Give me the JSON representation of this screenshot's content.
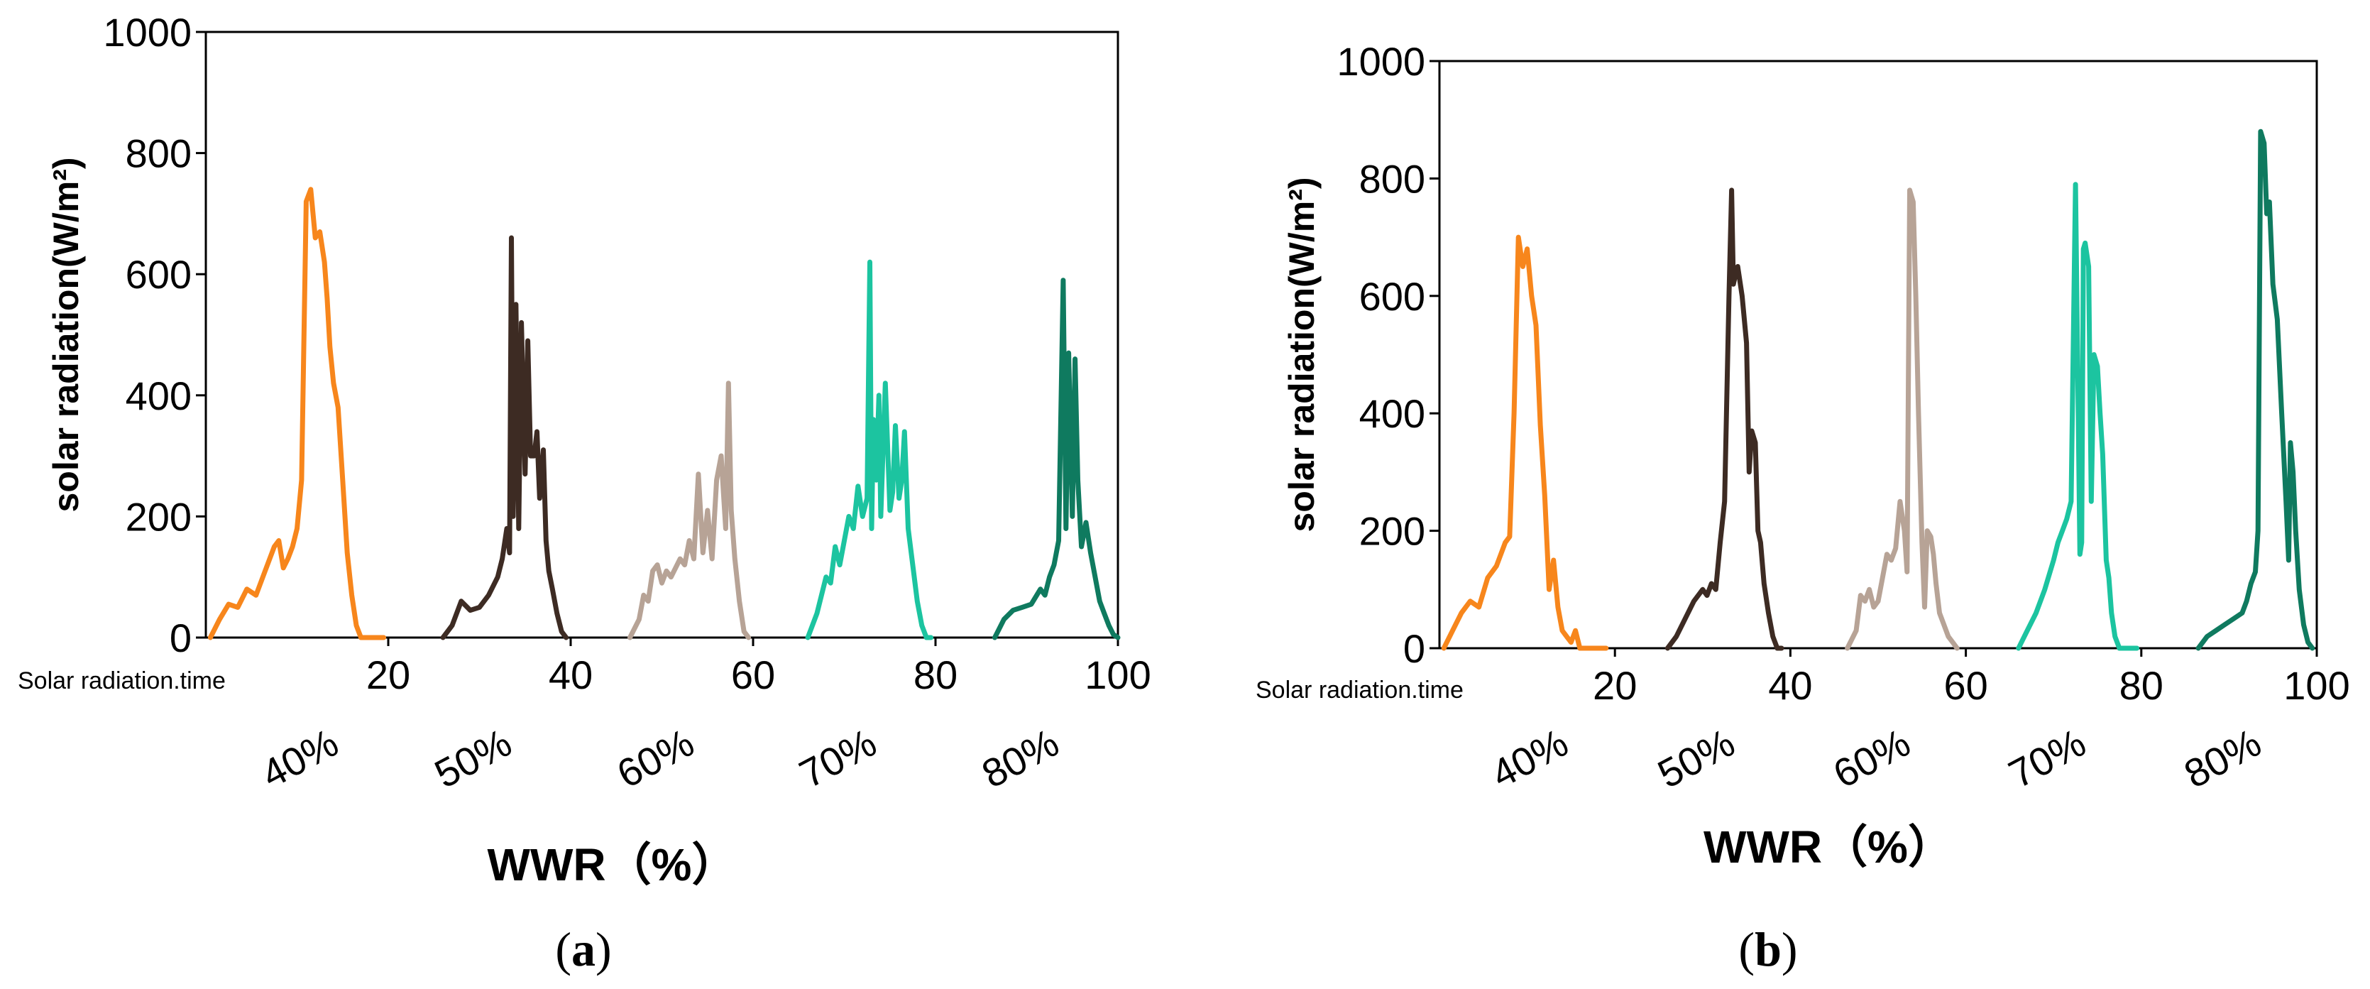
{
  "chart_data": [
    {
      "type": "line",
      "panel_label": "a",
      "ylabel": "solar radiation(W/m²)",
      "xlabel": "WWR（%）",
      "xlim": [
        0,
        100
      ],
      "ylim": [
        0,
        1000
      ],
      "xticks": [
        "20",
        "40",
        "60",
        "80",
        "100"
      ],
      "xtick_values": [
        20,
        40,
        60,
        80,
        100
      ],
      "yticks": [
        "0",
        "200",
        "400",
        "600",
        "800",
        "1000"
      ],
      "ytick_values": [
        0,
        200,
        400,
        600,
        800,
        1000
      ],
      "corner_note": "Solar radiation.time",
      "series": [
        {
          "name": "40%",
          "color": "#F7861C",
          "x": [
            0.5,
            1.5,
            2.5,
            3.5,
            4.5,
            5.5,
            6.5,
            7.5,
            8.0,
            8.5,
            9.0,
            9.5,
            10.0,
            10.5,
            11.0,
            11.5,
            12.0,
            12.5,
            13.0,
            13.3,
            13.6,
            14.0,
            14.5,
            15.0,
            15.5,
            16.0,
            16.5,
            17.0,
            17.5,
            18.0,
            18.5,
            19.0,
            19.5
          ],
          "y": [
            0,
            30,
            55,
            50,
            80,
            70,
            110,
            150,
            160,
            115,
            130,
            150,
            180,
            260,
            720,
            740,
            660,
            670,
            620,
            560,
            480,
            420,
            380,
            260,
            140,
            70,
            20,
            0,
            0,
            0,
            0,
            0,
            0
          ]
        },
        {
          "name": "50%",
          "color": "#3D2B23",
          "x": [
            26.0,
            27.0,
            28.0,
            29.0,
            30.0,
            31.0,
            32.0,
            32.5,
            33.0,
            33.3,
            33.5,
            33.7,
            34.0,
            34.3,
            34.6,
            35.0,
            35.3,
            35.6,
            36.0,
            36.3,
            36.6,
            37.0,
            37.3,
            37.6,
            38.0,
            38.5,
            39.0,
            39.5
          ],
          "y": [
            0,
            20,
            60,
            45,
            50,
            70,
            100,
            130,
            180,
            140,
            660,
            200,
            550,
            180,
            520,
            270,
            490,
            300,
            300,
            340,
            230,
            310,
            160,
            110,
            80,
            40,
            10,
            0
          ]
        },
        {
          "name": "60%",
          "color": "#B7A396",
          "x": [
            46.5,
            47.5,
            48.0,
            48.5,
            49.0,
            49.5,
            50.0,
            50.5,
            51.0,
            52.0,
            52.5,
            53.0,
            53.5,
            54.0,
            54.5,
            55.0,
            55.5,
            56.0,
            56.5,
            57.0,
            57.3,
            57.6,
            58.0,
            58.5,
            59.0,
            59.5
          ],
          "y": [
            0,
            30,
            70,
            60,
            110,
            120,
            90,
            110,
            100,
            130,
            120,
            160,
            130,
            270,
            140,
            210,
            130,
            260,
            300,
            180,
            420,
            210,
            130,
            60,
            10,
            0
          ]
        },
        {
          "name": "70%",
          "color": "#1CC4A0",
          "x": [
            66.0,
            67.0,
            68.0,
            68.5,
            69.0,
            69.5,
            70.0,
            70.5,
            71.0,
            71.5,
            72.0,
            72.5,
            72.8,
            73.0,
            73.2,
            73.5,
            73.8,
            74.0,
            74.5,
            75.0,
            75.3,
            75.6,
            76.0,
            76.3,
            76.6,
            77.0,
            77.5,
            78.0,
            78.5,
            79.0,
            79.5
          ],
          "y": [
            0,
            40,
            100,
            90,
            150,
            120,
            160,
            200,
            180,
            250,
            200,
            230,
            620,
            180,
            360,
            260,
            400,
            200,
            420,
            210,
            240,
            350,
            230,
            260,
            340,
            180,
            120,
            60,
            20,
            0,
            0
          ]
        },
        {
          "name": "80%",
          "color": "#0F7A5F",
          "x": [
            86.5,
            87.5,
            88.5,
            89.5,
            90.5,
            91.5,
            92.0,
            92.5,
            93.0,
            93.5,
            94.0,
            94.3,
            94.6,
            95.0,
            95.3,
            95.6,
            96.0,
            96.5,
            97.0,
            97.5,
            98.0,
            98.5,
            99.0,
            99.5,
            100.0
          ],
          "y": [
            0,
            30,
            45,
            50,
            55,
            80,
            70,
            100,
            120,
            160,
            590,
            180,
            470,
            200,
            460,
            260,
            150,
            190,
            140,
            100,
            60,
            40,
            20,
            5,
            0
          ]
        }
      ]
    },
    {
      "type": "line",
      "panel_label": "b",
      "ylabel": "solar radiation(W/m²)",
      "xlabel": "WWR（%）",
      "xlim": [
        0,
        100
      ],
      "ylim": [
        0,
        1000
      ],
      "xticks": [
        "20",
        "40",
        "60",
        "80",
        "100"
      ],
      "xtick_values": [
        20,
        40,
        60,
        80,
        100
      ],
      "yticks": [
        "0",
        "200",
        "400",
        "600",
        "800",
        "1000"
      ],
      "ytick_values": [
        0,
        200,
        400,
        600,
        800,
        1000
      ],
      "corner_note": "Solar radiation.time",
      "series": [
        {
          "name": "40%",
          "color": "#F7861C",
          "x": [
            0.5,
            1.5,
            2.5,
            3.5,
            4.5,
            5.5,
            6.5,
            7.5,
            8.0,
            8.5,
            9.0,
            9.5,
            10.0,
            10.5,
            11.0,
            11.5,
            12.0,
            12.5,
            13.0,
            13.5,
            14.0,
            14.5,
            15.0,
            15.5,
            16.0,
            16.5,
            17.0,
            17.5,
            18.0,
            18.5,
            19.0
          ],
          "y": [
            0,
            30,
            60,
            80,
            70,
            120,
            140,
            180,
            190,
            400,
            700,
            650,
            680,
            600,
            550,
            380,
            260,
            100,
            150,
            70,
            30,
            20,
            10,
            30,
            0,
            0,
            0,
            0,
            0,
            0,
            0
          ]
        },
        {
          "name": "50%",
          "color": "#3D2B23",
          "x": [
            26.0,
            27.0,
            28.0,
            29.0,
            30.0,
            30.5,
            31.0,
            31.5,
            32.0,
            32.5,
            33.0,
            33.3,
            33.5,
            33.8,
            34.0,
            34.5,
            35.0,
            35.3,
            35.6,
            36.0,
            36.3,
            36.6,
            37.0,
            37.5,
            38.0,
            38.5,
            39.0
          ],
          "y": [
            0,
            20,
            50,
            80,
            100,
            90,
            110,
            100,
            180,
            250,
            600,
            780,
            620,
            640,
            650,
            600,
            520,
            300,
            370,
            350,
            200,
            180,
            110,
            60,
            20,
            0,
            0
          ]
        },
        {
          "name": "60%",
          "color": "#B7A396",
          "x": [
            46.5,
            47.5,
            48.0,
            48.5,
            49.0,
            49.5,
            50.0,
            50.5,
            51.0,
            51.5,
            52.0,
            52.5,
            53.0,
            53.3,
            53.6,
            54.0,
            54.3,
            54.6,
            55.0,
            55.3,
            55.6,
            56.0,
            56.3,
            56.6,
            57.0,
            57.5,
            58.0,
            58.5,
            59.0
          ],
          "y": [
            0,
            30,
            90,
            80,
            100,
            70,
            80,
            120,
            160,
            150,
            170,
            250,
            200,
            130,
            780,
            760,
            600,
            400,
            180,
            70,
            200,
            190,
            160,
            110,
            60,
            40,
            20,
            10,
            0
          ]
        },
        {
          "name": "70%",
          "color": "#1CC4A0",
          "x": [
            66.0,
            67.0,
            68.0,
            69.0,
            70.0,
            70.5,
            71.0,
            71.5,
            72.0,
            72.5,
            73.0,
            73.2,
            73.4,
            73.6,
            74.0,
            74.3,
            74.6,
            75.0,
            75.3,
            75.6,
            76.0,
            76.3,
            76.6,
            77.0,
            77.5,
            78.0,
            78.5,
            79.0,
            79.5
          ],
          "y": [
            0,
            30,
            60,
            100,
            150,
            180,
            200,
            220,
            250,
            790,
            160,
            180,
            680,
            690,
            650,
            250,
            500,
            480,
            400,
            330,
            150,
            120,
            60,
            20,
            0,
            0,
            0,
            0,
            0
          ]
        },
        {
          "name": "80%",
          "color": "#0F7A5F",
          "x": [
            86.5,
            87.5,
            88.5,
            89.5,
            90.5,
            91.5,
            92.0,
            92.5,
            93.0,
            93.3,
            93.6,
            94.0,
            94.3,
            94.6,
            95.0,
            95.5,
            96.0,
            96.5,
            96.8,
            97.0,
            97.3,
            97.6,
            98.0,
            98.5,
            99.0,
            99.5
          ],
          "y": [
            0,
            20,
            30,
            40,
            50,
            60,
            80,
            110,
            130,
            200,
            880,
            860,
            740,
            760,
            620,
            560,
            400,
            250,
            150,
            350,
            300,
            200,
            100,
            40,
            10,
            0
          ]
        }
      ]
    }
  ]
}
